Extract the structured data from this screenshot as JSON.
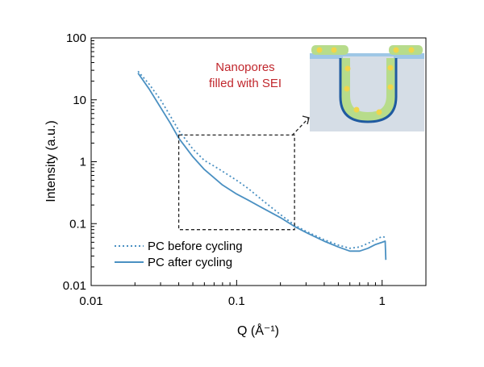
{
  "chart_data": {
    "type": "line",
    "xlabel": "Q (Å⁻¹)",
    "ylabel": "Intensity (a.u.)",
    "x_scale": "log",
    "y_scale": "log",
    "xlim": [
      0.01,
      2
    ],
    "ylim": [
      0.01,
      100
    ],
    "x_ticks": [
      0.01,
      0.1,
      1
    ],
    "x_tick_labels": [
      "0.01",
      "0.1",
      "1"
    ],
    "y_ticks": [
      0.01,
      0.1,
      1,
      10,
      100
    ],
    "y_tick_labels": [
      "0.01",
      "0.1",
      "1",
      "10",
      "100"
    ],
    "grid": false,
    "legend_position": "bottom-left",
    "colors": {
      "series": "#4a90c2",
      "annotation": "#c1272d",
      "zoom_box": "#222222"
    },
    "series": [
      {
        "name": "PC before cycling",
        "style": "dotted",
        "x": [
          0.021,
          0.025,
          0.03,
          0.035,
          0.04,
          0.05,
          0.06,
          0.07,
          0.08,
          0.1,
          0.12,
          0.15,
          0.2,
          0.25,
          0.3,
          0.4,
          0.5,
          0.6,
          0.7,
          0.8,
          0.9,
          1.0,
          1.05
        ],
        "y": [
          29,
          18,
          10,
          5.5,
          3.2,
          1.6,
          1.05,
          0.85,
          0.7,
          0.5,
          0.37,
          0.24,
          0.14,
          0.095,
          0.075,
          0.055,
          0.045,
          0.04,
          0.042,
          0.048,
          0.055,
          0.062,
          0.06
        ]
      },
      {
        "name": "PC after cycling",
        "style": "solid",
        "x": [
          0.021,
          0.025,
          0.03,
          0.035,
          0.04,
          0.05,
          0.06,
          0.07,
          0.08,
          0.1,
          0.12,
          0.15,
          0.2,
          0.25,
          0.3,
          0.4,
          0.5,
          0.6,
          0.7,
          0.8,
          0.9,
          1.0,
          1.05,
          1.06
        ],
        "y": [
          27,
          15,
          7.5,
          4.2,
          2.4,
          1.2,
          0.75,
          0.55,
          0.42,
          0.3,
          0.24,
          0.18,
          0.125,
          0.09,
          0.072,
          0.052,
          0.042,
          0.036,
          0.036,
          0.04,
          0.046,
          0.05,
          0.052,
          0.026
        ]
      }
    ],
    "zoom_region": {
      "x": [
        0.04,
        0.25
      ],
      "y": [
        0.08,
        2.7
      ]
    },
    "annotations": [
      "Nanopores",
      "filled with SEI"
    ]
  }
}
